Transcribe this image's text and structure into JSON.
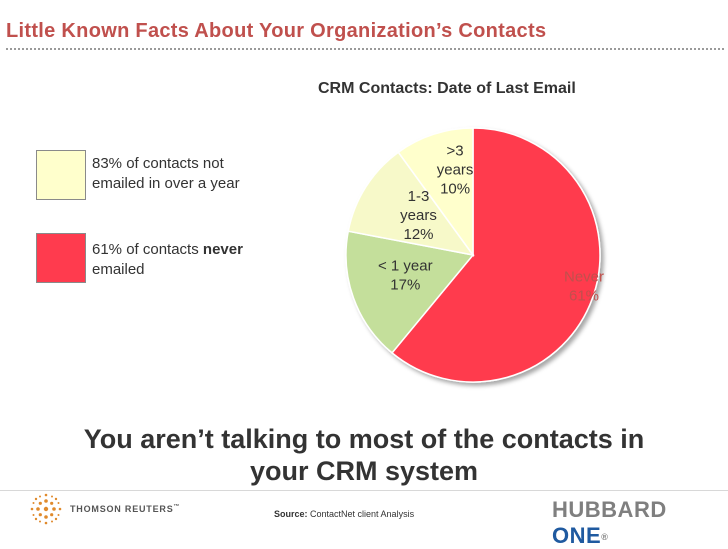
{
  "slide": {
    "title": "Little Known Facts About Your Organization’s Contacts",
    "tagline_line1": "You aren’t talking to most of the contacts in",
    "tagline_line2": "your CRM system"
  },
  "legend": [
    {
      "text_line1": "83% of contacts not",
      "text_line2": "emailed in over a year",
      "color": "#ffffcc"
    },
    {
      "text_line1": "61% of contacts ",
      "bold": "never",
      "text_line2": "emailed",
      "color": "#ff3b4e"
    }
  ],
  "chart_data": {
    "type": "pie",
    "title": "CRM Contacts: Date of Last Email",
    "start_angle_deg": 0,
    "direction": "clockwise",
    "slices": [
      {
        "label": "Never",
        "pct_label": "61%",
        "value": 61,
        "color": "#ff3b4e"
      },
      {
        "label": "< 1 year",
        "pct_label": "17%",
        "value": 17,
        "color": "#c4df9b"
      },
      {
        "label": "1-3 years",
        "pct_label": "12%",
        "value": 12,
        "color": "#f7f9c9"
      },
      {
        "label": ">3 years",
        "pct_label": "10%",
        "value": 10,
        "color": "#ffffcc"
      }
    ]
  },
  "footer": {
    "source_label": "Source:",
    "source_text": " ContactNet client Analysis",
    "thomson_reuters": "THOMSON REUTERS",
    "trademark": "™",
    "hubbard": "HUBBARD ",
    "one": "ONE",
    "registered": "®"
  }
}
